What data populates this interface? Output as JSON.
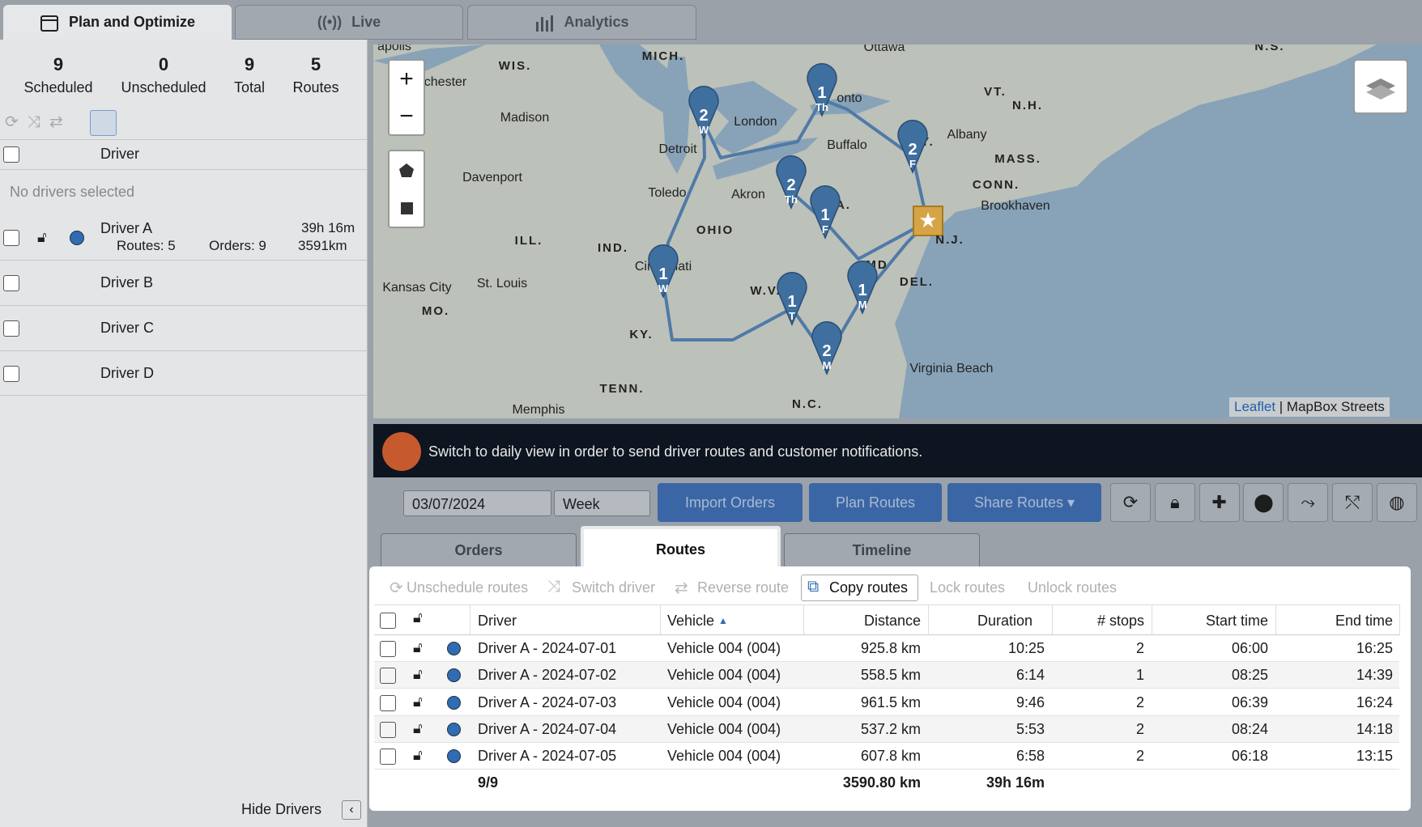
{
  "tabs": [
    "Plan and Optimize",
    "Live",
    "Analytics"
  ],
  "stats": [
    {
      "value": "9",
      "label": "Scheduled"
    },
    {
      "value": "0",
      "label": "Unscheduled"
    },
    {
      "value": "9",
      "label": "Total"
    },
    {
      "value": "5",
      "label": "Routes"
    }
  ],
  "drivers_panel": {
    "header": "Driver",
    "empty_note": "No drivers selected",
    "drivers": [
      {
        "name": "Driver A",
        "duration": "39h 16m",
        "routes": "Routes: 5",
        "orders": "Orders: 9",
        "distance": "3591km"
      },
      {
        "name": "Driver B"
      },
      {
        "name": "Driver C"
      },
      {
        "name": "Driver D"
      }
    ],
    "hide": "Hide Drivers"
  },
  "map": {
    "labels": [
      "apolis",
      "MICH.",
      "Ottawa",
      "N.S.",
      "WIS.",
      "chester",
      "Madison",
      "London",
      "onto",
      "VT.",
      "N.H.",
      "Detroit",
      "Buffalo",
      "N.Y.",
      "Albany",
      "MASS.",
      "Davenport",
      "Toledo",
      "Akron",
      "CONN.",
      "Brookhaven",
      "PA.",
      "N.J.",
      "ILL.",
      "IND.",
      "OHIO",
      "Cincinnati",
      "MD",
      "DEL.",
      "Kansas City",
      "St. Louis",
      "W.VA",
      "MO.",
      "VA.",
      "KY.",
      "Virginia Beach",
      "TENN.",
      "N.C.",
      "Memphis"
    ],
    "pins": [
      {
        "number": "1",
        "day": "Th"
      },
      {
        "number": "2",
        "day": "W"
      },
      {
        "number": "2",
        "day": "F"
      },
      {
        "number": "2",
        "day": "Th"
      },
      {
        "number": "1",
        "day": "F"
      },
      {
        "number": "1",
        "day": "W"
      },
      {
        "number": "1",
        "day": "T"
      },
      {
        "number": "1",
        "day": "M"
      },
      {
        "number": "2",
        "day": "M"
      }
    ],
    "attribution": [
      "Leaflet",
      "MapBox Streets"
    ]
  },
  "banner": "Switch to daily view in order to send driver routes and customer notifications.",
  "toolbar": {
    "date": "03/07/2024",
    "period": "Week",
    "buttons": [
      "Import Orders",
      "Plan Routes",
      "Share Routes"
    ]
  },
  "subtabs": [
    "Orders",
    "Routes",
    "Timeline"
  ],
  "actions": [
    "Unschedule routes",
    "Switch driver",
    "Reverse route",
    "Copy routes",
    "Lock routes",
    "Unlock routes"
  ],
  "table": {
    "columns": [
      "Driver",
      "Vehicle",
      "Distance",
      "Duration",
      "# stops",
      "Start time",
      "End time"
    ],
    "rows": [
      [
        "Driver A - 2024-07-01",
        "Vehicle 004 (004)",
        "925.8 km",
        "10:25",
        "2",
        "06:00",
        "16:25"
      ],
      [
        "Driver A - 2024-07-02",
        "Vehicle 004 (004)",
        "558.5 km",
        "6:14",
        "1",
        "08:25",
        "14:39"
      ],
      [
        "Driver A - 2024-07-03",
        "Vehicle 004 (004)",
        "961.5 km",
        "9:46",
        "2",
        "06:39",
        "16:24"
      ],
      [
        "Driver A - 2024-07-04",
        "Vehicle 004 (004)",
        "537.2 km",
        "5:53",
        "2",
        "08:24",
        "14:18"
      ],
      [
        "Driver A - 2024-07-05",
        "Vehicle 004 (004)",
        "607.8 km",
        "6:58",
        "2",
        "06:18",
        "13:15"
      ]
    ],
    "totals": {
      "count": "9/9",
      "distance": "3590.80 km",
      "duration": "39h 16m"
    }
  }
}
